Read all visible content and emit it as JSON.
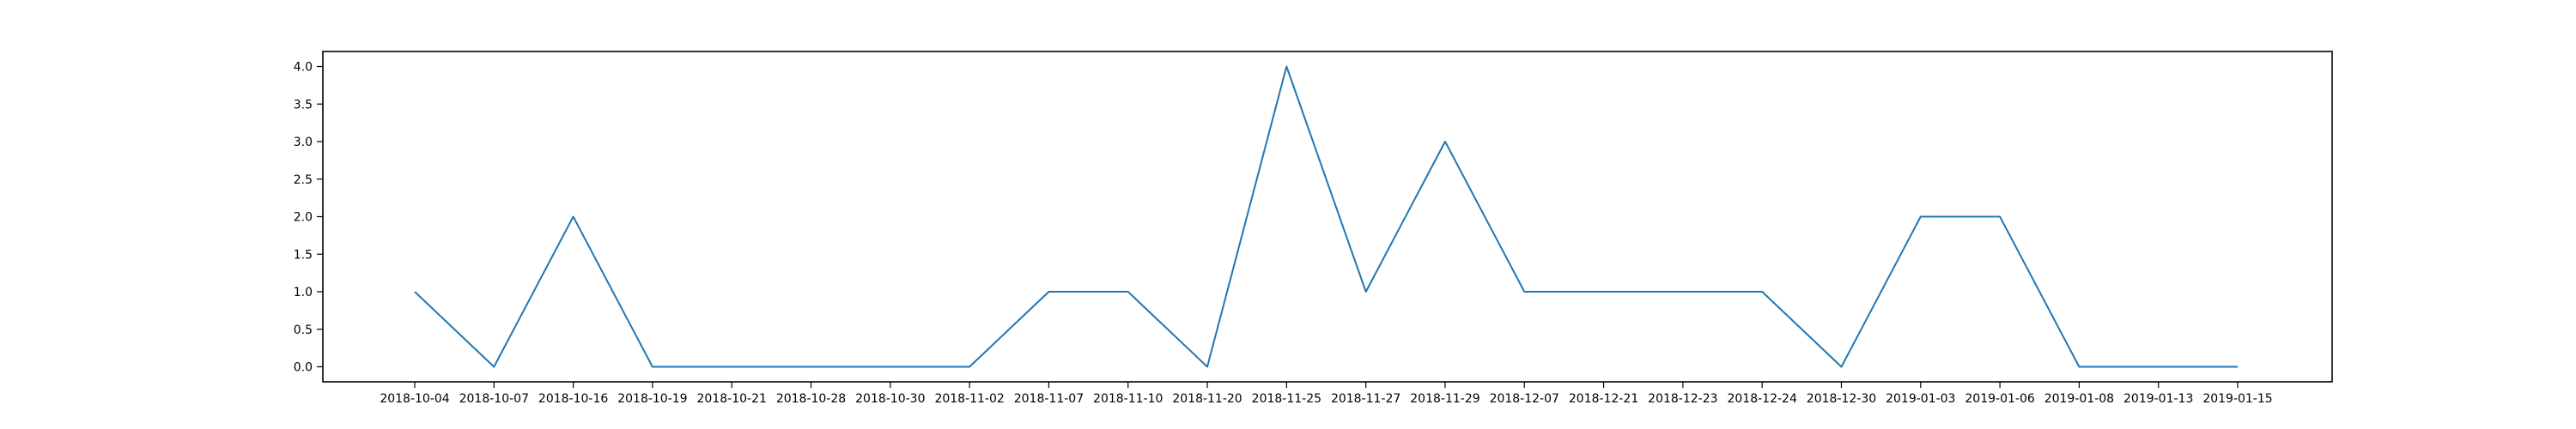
{
  "chart_data": {
    "type": "line",
    "title": "",
    "xlabel": "",
    "ylabel": "",
    "categories": [
      "2018-10-04",
      "2018-10-07",
      "2018-10-16",
      "2018-10-19",
      "2018-10-21",
      "2018-10-28",
      "2018-10-30",
      "2018-11-02",
      "2018-11-07",
      "2018-11-10",
      "2018-11-20",
      "2018-11-25",
      "2018-11-27",
      "2018-11-29",
      "2018-12-07",
      "2018-12-21",
      "2018-12-23",
      "2018-12-24",
      "2018-12-30",
      "2019-01-03",
      "2019-01-06",
      "2019-01-08",
      "2019-01-13",
      "2019-01-15"
    ],
    "series": [
      {
        "values": [
          1,
          0,
          2,
          0,
          0,
          0,
          0,
          0,
          1,
          1,
          0,
          4,
          1,
          3,
          1,
          1,
          1,
          1,
          0,
          2,
          2,
          0,
          0,
          0
        ],
        "color": "#1f77b4"
      }
    ],
    "y_ticks": [
      "0.0",
      "0.5",
      "1.0",
      "1.5",
      "2.0",
      "2.5",
      "3.0",
      "3.5",
      "4.0"
    ],
    "ylim": [
      -0.2,
      4.2
    ],
    "grid": false,
    "legend": "none"
  }
}
